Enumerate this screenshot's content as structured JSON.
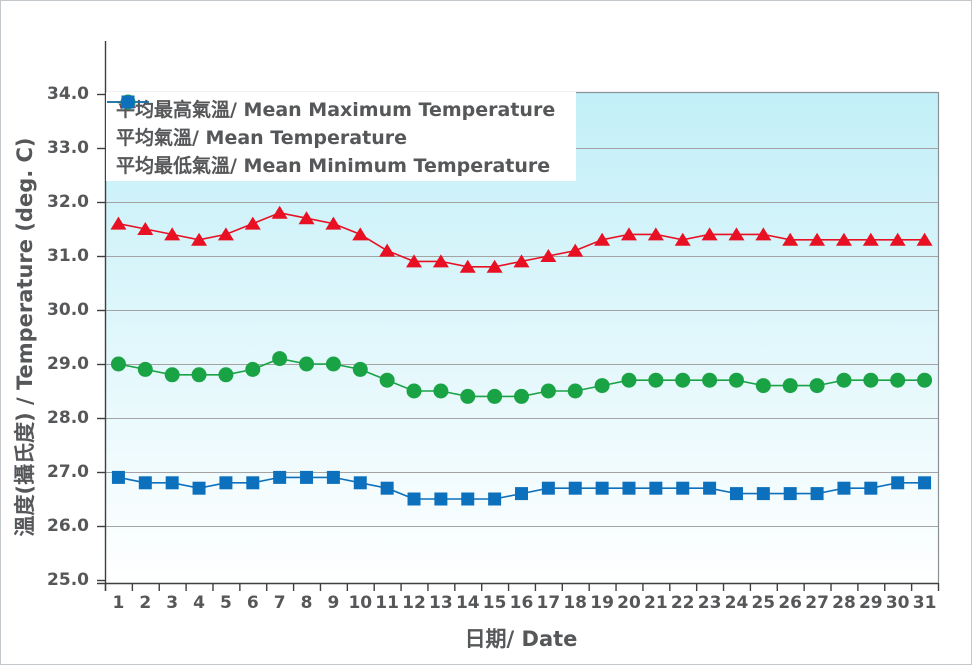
{
  "figure": {
    "background_color": "#ffffff",
    "plot_background_gradient": [
      "#c2eff8",
      "#ffffff"
    ],
    "gridline_color": "#a3a3a3",
    "axis_line_color": "#3f3f3f",
    "label_color": "#565759"
  },
  "chart_data": {
    "type": "line",
    "title": "",
    "xlabel": "日期/ Date",
    "ylabel": "溫度(攝氏度) / Temperature (deg. C)",
    "x": [
      1,
      2,
      3,
      4,
      5,
      6,
      7,
      8,
      9,
      10,
      11,
      12,
      13,
      14,
      15,
      16,
      17,
      18,
      19,
      20,
      21,
      22,
      23,
      24,
      25,
      26,
      27,
      28,
      29,
      30,
      31
    ],
    "ylim": [
      25.0,
      34.0
    ],
    "yticks": [
      "34.0",
      "33.0",
      "32.0",
      "31.0",
      "30.0",
      "29.0",
      "28.0",
      "27.0",
      "26.0",
      "25.0"
    ],
    "grid": true,
    "legend_position": "top-left",
    "series": [
      {
        "name": "平均最高氣溫/ Mean Maximum Temperature",
        "marker": "triangle",
        "color": "#e81123",
        "values": [
          31.6,
          31.5,
          31.4,
          31.3,
          31.4,
          31.6,
          31.8,
          31.7,
          31.6,
          31.4,
          31.1,
          30.9,
          30.9,
          30.8,
          30.8,
          30.9,
          31.0,
          31.1,
          31.3,
          31.4,
          31.4,
          31.3,
          31.4,
          31.4,
          31.4,
          31.3,
          31.3,
          31.3,
          31.3,
          31.3,
          31.3
        ]
      },
      {
        "name": "平均氣溫/ Mean Temperature",
        "marker": "circle",
        "color": "#1aa344",
        "values": [
          29.0,
          28.9,
          28.8,
          28.8,
          28.8,
          28.9,
          29.1,
          29.0,
          29.0,
          28.9,
          28.7,
          28.5,
          28.5,
          28.4,
          28.4,
          28.4,
          28.5,
          28.5,
          28.6,
          28.7,
          28.7,
          28.7,
          28.7,
          28.7,
          28.6,
          28.6,
          28.6,
          28.7,
          28.7,
          28.7,
          28.7
        ]
      },
      {
        "name": "平均最低氣溫/ Mean Minimum Temperature",
        "marker": "square",
        "color": "#0d70bc",
        "values": [
          26.9,
          26.8,
          26.8,
          26.7,
          26.8,
          26.8,
          26.9,
          26.9,
          26.9,
          26.8,
          26.7,
          26.5,
          26.5,
          26.5,
          26.5,
          26.6,
          26.7,
          26.7,
          26.7,
          26.7,
          26.7,
          26.7,
          26.7,
          26.6,
          26.6,
          26.6,
          26.6,
          26.7,
          26.7,
          26.8,
          26.8
        ]
      }
    ]
  }
}
